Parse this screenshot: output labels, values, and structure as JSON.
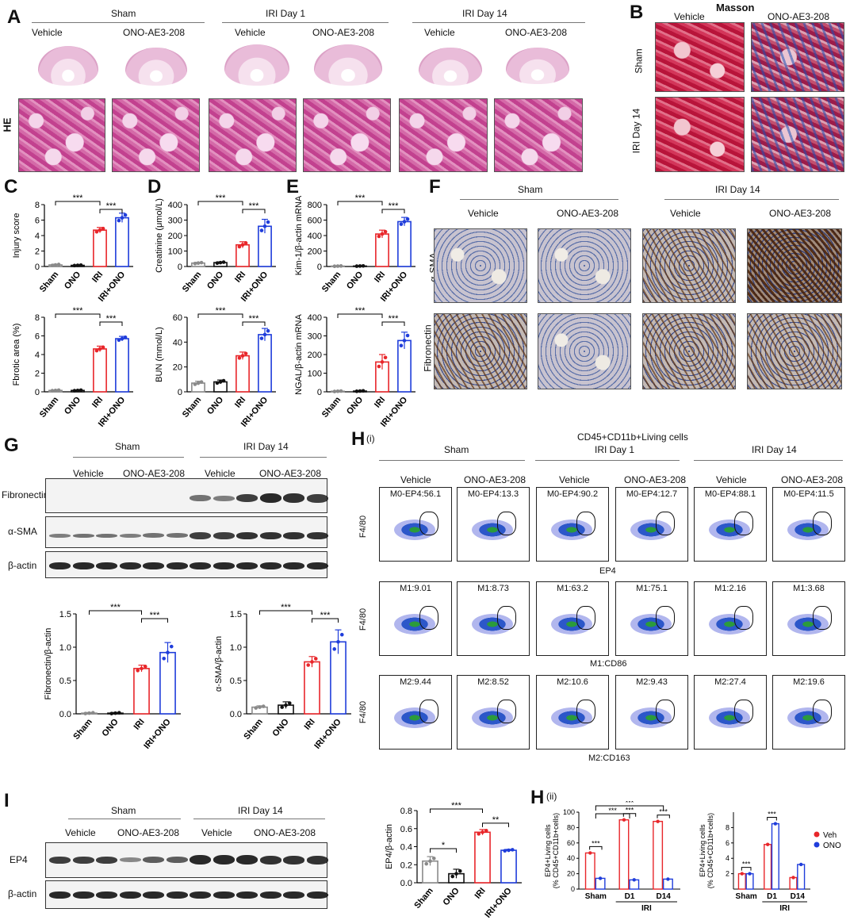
{
  "panel_letters": {
    "A": "A",
    "B": "B",
    "C": "C",
    "D": "D",
    "E": "E",
    "F": "F",
    "G": "G",
    "H": "H",
    "I": "I",
    "Hi": "(i)",
    "Hii": "(ii)"
  },
  "A": {
    "groups": [
      "Sham",
      "IRI Day 1",
      "IRI Day 14"
    ],
    "treatments": [
      "Vehicle",
      "ONO-AE3-208",
      "Vehicle",
      "ONO-AE3-208",
      "Vehicle",
      "ONO-AE3-208"
    ],
    "stain": "HE"
  },
  "B": {
    "title": "Masson",
    "cols": [
      "Vehicle",
      "ONO-AE3-208"
    ],
    "rows": [
      "Sham",
      "IRI Day 14"
    ]
  },
  "F": {
    "groups": [
      "Sham",
      "IRI Day 14"
    ],
    "cols": [
      "Vehicle",
      "ONO-AE3-208",
      "Vehicle",
      "ONO-AE3-208"
    ],
    "rows": [
      "α-SMA",
      "Fibronectin"
    ]
  },
  "G": {
    "groups": [
      "Sham",
      "IRI Day 14"
    ],
    "cols": [
      "Vehicle",
      "ONO-AE3-208",
      "Vehicle",
      "ONO-AE3-208"
    ],
    "blots": [
      "Fibronectin",
      "α-SMA",
      "β-actin"
    ]
  },
  "H": {
    "title": "CD45+CD11b+Living cells",
    "groups": [
      "Sham",
      "IRI Day 1",
      "IRI Day 14"
    ],
    "cols": [
      "Vehicle",
      "ONO-AE3-208",
      "Vehicle",
      "ONO-AE3-208",
      "Vehicle",
      "ONO-AE3-208"
    ],
    "y_label": "F4/80",
    "rows": [
      {
        "x_label": "EP4",
        "gates": [
          "M0-EP4:56.1",
          "M0-EP4:13.3",
          "M0-EP4:90.2",
          "M0-EP4:12.7",
          "M0-EP4:88.1",
          "M0-EP4:11.5"
        ]
      },
      {
        "x_label": "M1:CD86",
        "gates": [
          "M1:9.01",
          "M1:8.73",
          "M1:63.2",
          "M1:75.1",
          "M1:2.16",
          "M1:3.68"
        ]
      },
      {
        "x_label": "M2:CD163",
        "gates": [
          "M2:9.44",
          "M2:8.52",
          "M2:10.6",
          "M2:9.43",
          "M2:27.4",
          "M2:19.6"
        ]
      }
    ]
  },
  "I": {
    "groups": [
      "Sham",
      "IRI Day 14"
    ],
    "cols": [
      "Vehicle",
      "ONO-AE3-208",
      "Vehicle",
      "ONO-AE3-208"
    ],
    "blots": [
      "EP4",
      "β-actin"
    ]
  },
  "colors": {
    "sham": "#8a8a8a",
    "ono": "#111111",
    "iri": "#e8262a",
    "iriono": "#1f3ddb",
    "veh": "#e8262a",
    "ono_h": "#1f3ddb"
  },
  "chart_data": [
    {
      "id": "C1",
      "type": "bar",
      "categories": [
        "Sham",
        "ONO",
        "IRI",
        "IRI+ONO"
      ],
      "values": [
        0.2,
        0.15,
        4.7,
        6.3
      ],
      "errors": [
        0.1,
        0.05,
        0.35,
        0.6
      ],
      "ylabel": "Injury score",
      "ylim": [
        0,
        8
      ],
      "yticks": [
        "0",
        "2",
        "4",
        "6",
        "8"
      ],
      "sig": [
        "***",
        "***"
      ]
    },
    {
      "id": "C2",
      "type": "bar",
      "categories": [
        "Sham",
        "ONO",
        "IRI",
        "IRI+ONO"
      ],
      "values": [
        0.15,
        0.15,
        4.6,
        5.7
      ],
      "errors": [
        0.05,
        0.05,
        0.3,
        0.25
      ],
      "ylabel": "Fbrotic area (%)",
      "ylim": [
        0,
        8
      ],
      "yticks": [
        "0",
        "2",
        "4",
        "6",
        "8"
      ],
      "sig": [
        "***",
        "***"
      ]
    },
    {
      "id": "D1",
      "type": "bar",
      "categories": [
        "Sham",
        "ONO",
        "IRI",
        "IRI+ONO"
      ],
      "values": [
        22,
        25,
        140,
        260
      ],
      "errors": [
        5,
        5,
        20,
        45
      ],
      "ylabel": "Creatinine (μmol/L)",
      "ylim": [
        0,
        400
      ],
      "yticks": [
        "0",
        "100",
        "200",
        "300",
        "400"
      ],
      "sig": [
        "***",
        "***"
      ]
    },
    {
      "id": "D2",
      "type": "bar",
      "categories": [
        "Sham",
        "ONO",
        "IRI",
        "IRI+ONO"
      ],
      "values": [
        7,
        8,
        29,
        46
      ],
      "errors": [
        1.5,
        1.5,
        3,
        5
      ],
      "ylabel": "BUN (mmol/L)",
      "ylim": [
        0,
        60
      ],
      "yticks": [
        "0",
        "20",
        "40",
        "60"
      ],
      "sig": [
        "***",
        "***"
      ]
    },
    {
      "id": "E1",
      "type": "bar",
      "categories": [
        "Sham",
        "ONO",
        "IRI",
        "IRI+ONO"
      ],
      "values": [
        5,
        6,
        420,
        580
      ],
      "errors": [
        3,
        3,
        50,
        55
      ],
      "ylabel": "Kim-1/β-actin mRNA",
      "ylim": [
        0,
        800
      ],
      "yticks": [
        "0",
        "200",
        "400",
        "600",
        "800"
      ],
      "sig": [
        "***",
        "***"
      ]
    },
    {
      "id": "E2",
      "type": "bar",
      "categories": [
        "Sham",
        "ONO",
        "IRI",
        "IRI+ONO"
      ],
      "values": [
        3,
        4,
        160,
        275
      ],
      "errors": [
        2,
        2,
        40,
        45
      ],
      "ylabel": "NGAL/β-actin mRNA",
      "ylim": [
        0,
        400
      ],
      "yticks": [
        "0",
        "100",
        "200",
        "300",
        "400"
      ],
      "sig": [
        "***",
        "***"
      ]
    },
    {
      "id": "G1",
      "type": "bar",
      "categories": [
        "Sham",
        "ONO",
        "IRI",
        "IRI+ONO"
      ],
      "values": [
        0.01,
        0.01,
        0.68,
        0.92
      ],
      "errors": [
        0.01,
        0.01,
        0.05,
        0.15
      ],
      "ylabel": "Fibronectin/β-actin",
      "ylim": [
        0,
        1.5
      ],
      "yticks": [
        "0.0",
        "0.5",
        "1.0",
        "1.5"
      ],
      "sig": [
        "***",
        "***"
      ]
    },
    {
      "id": "G2",
      "type": "bar",
      "categories": [
        "Sham",
        "ONO",
        "IRI",
        "IRI+ONO"
      ],
      "values": [
        0.1,
        0.13,
        0.78,
        1.08
      ],
      "errors": [
        0.02,
        0.05,
        0.08,
        0.18
      ],
      "ylabel": "α-SMA/β-actin",
      "ylim": [
        0,
        1.5
      ],
      "yticks": [
        "0.0",
        "0.5",
        "1.0",
        "1.5"
      ],
      "sig": [
        "***",
        "***"
      ]
    },
    {
      "id": "I1",
      "type": "bar",
      "categories": [
        "Sham",
        "ONO",
        "IRI",
        "IRI+ONO"
      ],
      "values": [
        0.24,
        0.1,
        0.56,
        0.36
      ],
      "errors": [
        0.05,
        0.05,
        0.03,
        0.01
      ],
      "ylabel": "EP4/β-actin",
      "ylim": [
        0,
        0.8
      ],
      "yticks": [
        "0.0",
        "0.2",
        "0.4",
        "0.6",
        "0.8"
      ],
      "sig": [
        "*",
        "***",
        "**"
      ]
    },
    {
      "id": "H1",
      "type": "bar",
      "categories": [
        "Sham",
        "D1",
        "D14"
      ],
      "xgroup": "IRI",
      "series": [
        {
          "name": "Veh",
          "values": [
            47,
            90,
            88
          ]
        },
        {
          "name": "ONO",
          "values": [
            14,
            12,
            13
          ]
        }
      ],
      "ylabel": "EP4+Living cells (% CD45+CD11b+cells)",
      "ylim": [
        0,
        100
      ],
      "yticks": [
        "0",
        "20",
        "40",
        "60",
        "80",
        "100"
      ],
      "sig": [
        "***",
        "***",
        "***",
        "***",
        "***"
      ]
    },
    {
      "id": "H2",
      "type": "bar",
      "categories": [
        "Sham",
        "D1",
        "D14"
      ],
      "xgroup": "IRI",
      "series": [
        {
          "name": "Veh",
          "values": [
            2,
            5.8,
            1.5
          ]
        },
        {
          "name": "ONO",
          "values": [
            2,
            8.5,
            3.2
          ]
        }
      ],
      "ylabel": "EP4+Living cells (% CD45+CD11b+cells)",
      "ylim": [
        0,
        10
      ],
      "yticks": [
        "2",
        "4",
        "6",
        "8"
      ],
      "sig": [
        "***",
        "***"
      ],
      "legend": [
        "Veh",
        "ONO"
      ]
    }
  ]
}
